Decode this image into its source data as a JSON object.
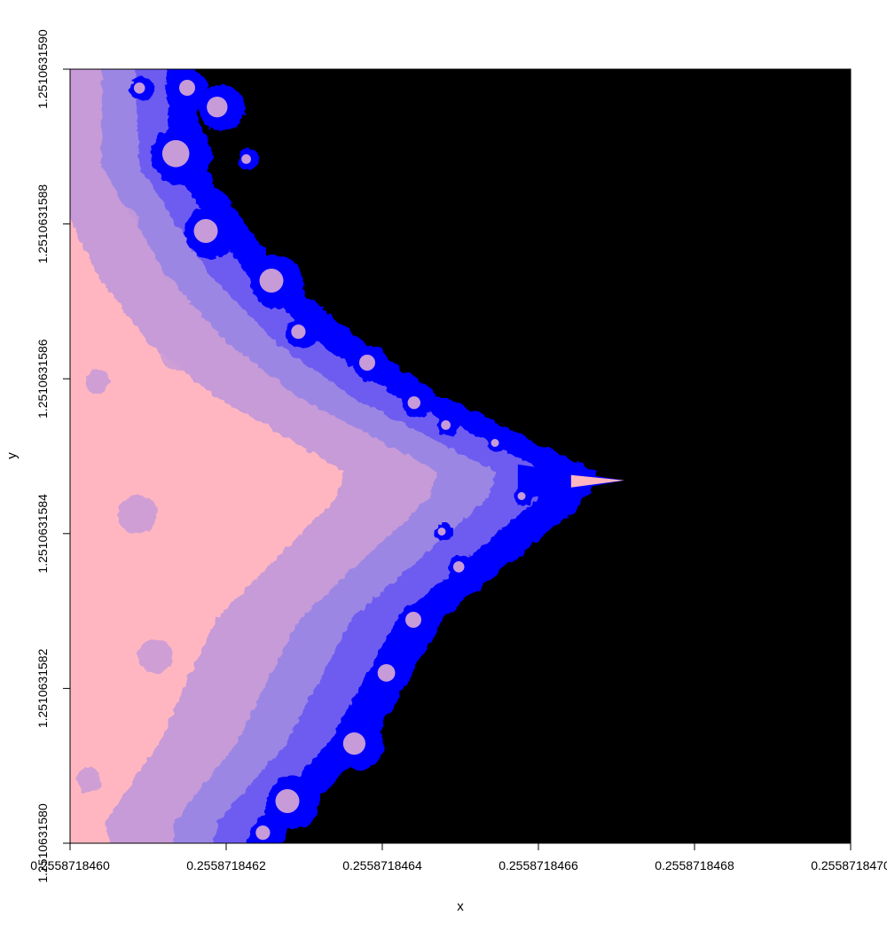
{
  "chart_data": {
    "type": "heatmap",
    "title": "",
    "xlabel": "x",
    "ylabel": "y",
    "xlim": [
      0.255871846,
      0.255871847
    ],
    "ylim": [
      1.251063158,
      1.251063159
    ],
    "x_ticks": [
      0.255871846,
      0.2558718462,
      0.2558718464,
      0.2558718466,
      0.2558718468,
      0.255871847
    ],
    "x_tick_labels": [
      "0.2558718460",
      "0.2558718462",
      "0.2558718464",
      "0.2558718466",
      "0.2558718468",
      "0.2558718470"
    ],
    "y_ticks": [
      1.251063158,
      1.2510631582,
      1.2510631584,
      1.2510631586,
      1.2510631588,
      1.251063159
    ],
    "y_tick_labels": [
      "1.2510631580",
      "1.2510631582",
      "1.2510631584",
      "1.2510631586",
      "1.2510631588",
      "1.2510631590"
    ],
    "colors": {
      "inside_set": "#000000",
      "low_iteration": "#ffb6c1",
      "mid_iteration_1": "#c79ad8",
      "mid_iteration_2": "#9b86e4",
      "mid_iteration_3": "#6e5cf0",
      "high_iteration": "#0000ff"
    },
    "tip_point": [
      0.25587184671,
      1.2510631584688
    ],
    "grid": false,
    "legend": "none"
  }
}
